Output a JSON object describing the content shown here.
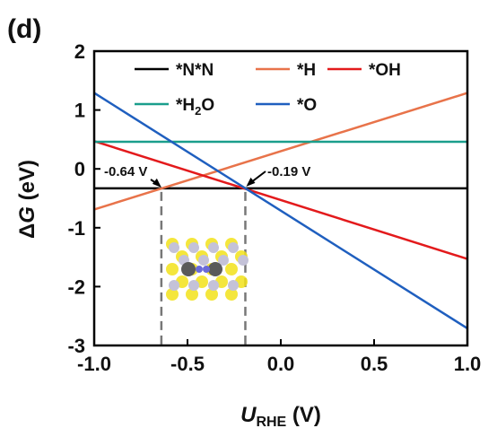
{
  "panel_label": "(d)",
  "chart_data": {
    "type": "line",
    "xlabel_main": "U",
    "xlabel_sub": "RHE",
    "xlabel_unit": " (V)",
    "ylabel_main": "Δ",
    "ylabel_italic": "G",
    "ylabel_unit": " (eV)",
    "xlim": [
      -1.0,
      1.0
    ],
    "ylim": [
      -3.0,
      2.0
    ],
    "xticks": [
      -1.0,
      -0.5,
      0.0,
      0.5,
      1.0
    ],
    "xtick_labels": [
      "-1.0",
      "-0.5",
      "0.0",
      "0.5",
      "1.0"
    ],
    "yticks": [
      -3,
      -2,
      -1,
      0,
      1,
      2
    ],
    "ytick_labels": [
      "-3",
      "-2",
      "-1",
      "0",
      "1",
      "2"
    ],
    "grid": false,
    "legend_position": "top",
    "series": [
      {
        "name": "*N*N",
        "color": "#000000",
        "x": [
          -1.0,
          1.0
        ],
        "y": [
          -0.33,
          -0.33
        ]
      },
      {
        "name": "*H",
        "color": "#e8734a",
        "x": [
          -1.0,
          1.0
        ],
        "y": [
          -0.69,
          1.29
        ]
      },
      {
        "name": "*OH",
        "color": "#e31a1c",
        "x": [
          -1.0,
          1.0
        ],
        "y": [
          0.47,
          -1.53
        ]
      },
      {
        "name": "*H2O",
        "name_main": "*H",
        "name_sub": "2",
        "name_tail": "O",
        "color": "#1a9e8c",
        "x": [
          -1.0,
          1.0
        ],
        "y": [
          0.46,
          0.46
        ]
      },
      {
        "name": "*O",
        "color": "#1f5fbf",
        "x": [
          -1.0,
          1.0
        ],
        "y": [
          1.29,
          -2.71
        ]
      }
    ],
    "annotations": [
      {
        "text": "-0.64 V",
        "x": -0.64,
        "y": -0.33
      },
      {
        "text": "-0.19 V",
        "x": -0.19,
        "y": -0.33
      }
    ],
    "dashed_verticals": [
      -0.64,
      -0.19
    ]
  }
}
